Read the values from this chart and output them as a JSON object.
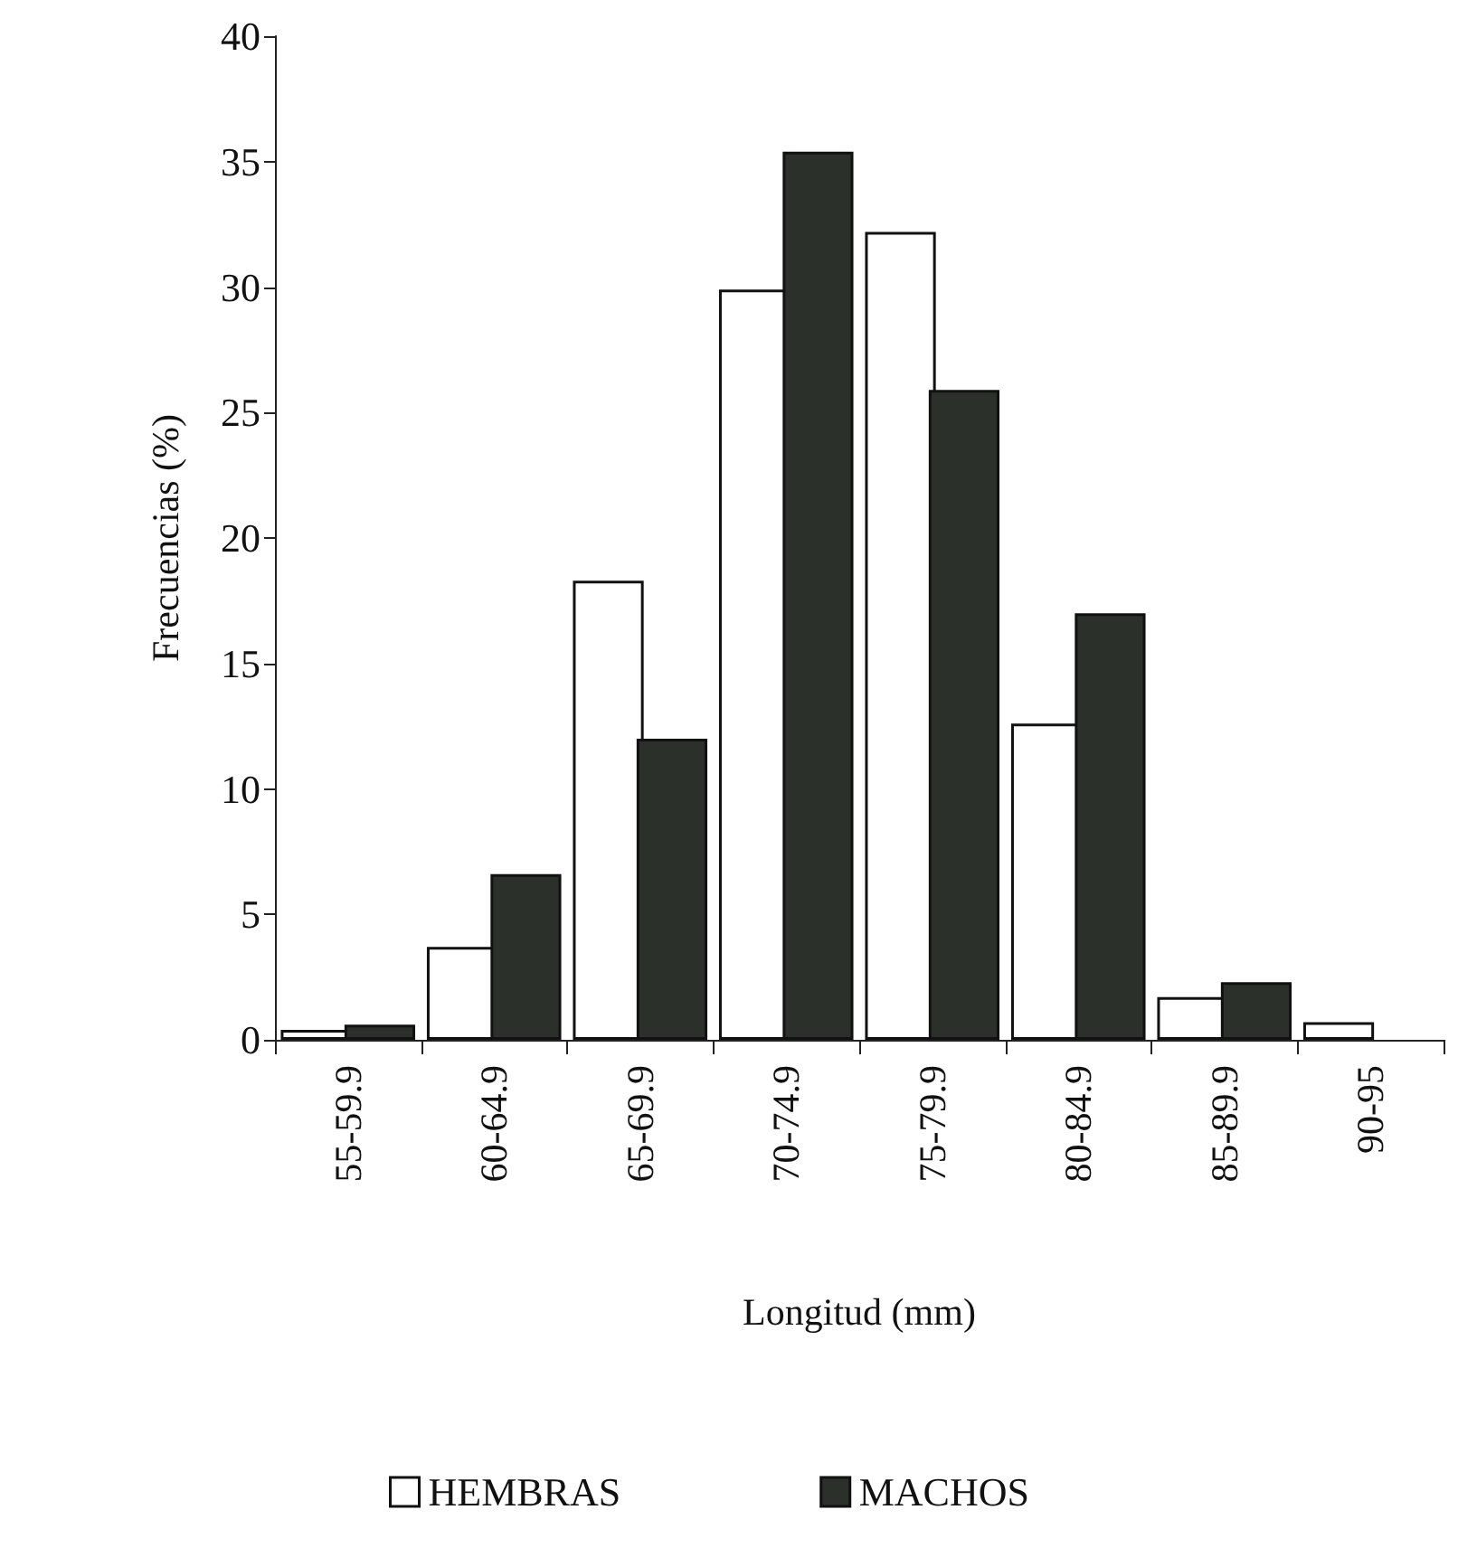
{
  "chart_data": {
    "type": "bar",
    "xlabel": "Longitud (mm)",
    "ylabel": "Frecuencias (%)",
    "categories": [
      "55-59.9",
      "60-64.9",
      "65-69.9",
      "70-74.9",
      "75-79.9",
      "80-84.9",
      "85-89.9",
      "90-95"
    ],
    "series": [
      {
        "name": "HEMBRAS",
        "color": "#ffffff",
        "values": [
          0.4,
          3.7,
          18.3,
          29.9,
          32.2,
          12.6,
          1.7,
          0.7
        ]
      },
      {
        "name": "MACHOS",
        "color": "#2b302a",
        "values": [
          0.6,
          6.6,
          12.0,
          35.4,
          25.9,
          17.0,
          2.3,
          null
        ]
      }
    ],
    "ylim": [
      0,
      40
    ],
    "yticks": [
      0,
      5,
      10,
      15,
      20,
      25,
      30,
      35,
      40
    ],
    "grid": false,
    "legend": "bottom"
  }
}
